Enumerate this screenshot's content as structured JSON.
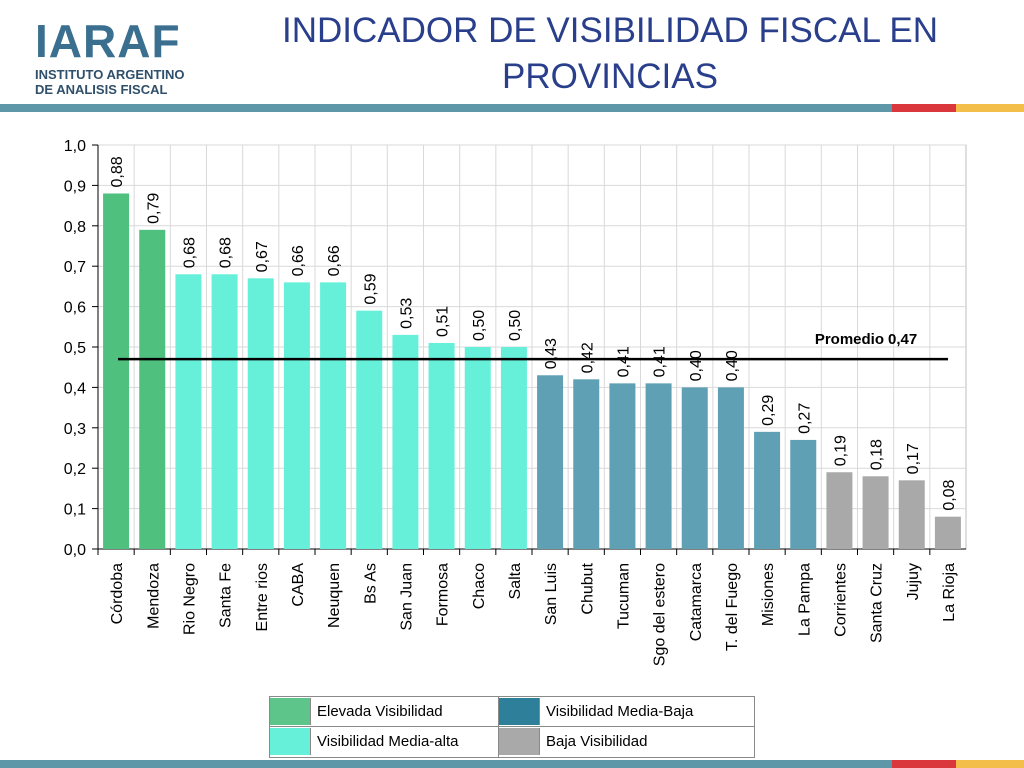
{
  "logo": {
    "mark": "IARAF",
    "line1": "INSTITUTO ARGENTINO",
    "line2": "DE ANALISIS FISCAL"
  },
  "title_line1": "INDICADOR DE VISIBILIDAD FISCAL EN",
  "title_line2": "PROVINCIAS",
  "colors": {
    "Elevada Visibilidad": "#4fc07e",
    "Visibilidad Media-alta": "#66f0d9",
    "Visibilidad Media-Baja": "#5fa0b5",
    "Baja Visibilidad": "#a9a9a9",
    "legend_media_baja": "#2e7f99",
    "legend_elevada": "#5dc58a",
    "title": "#2a3f8c"
  },
  "chart_data": {
    "type": "bar",
    "categories": [
      "Córdoba",
      "Mendoza",
      "Rio Negro",
      "Santa Fe",
      "Entre rios",
      "CABA",
      "Neuquen",
      "Bs As",
      "San Juan",
      "Formosa",
      "Chaco",
      "Salta",
      "San Luis",
      "Chubut",
      "Tucuman",
      "Sgo del estero",
      "Catamarca",
      "T. del Fuego",
      "Misiones",
      "La Pampa",
      "Corrientes",
      "Santa Cruz",
      "Jujuy",
      "La Rioja"
    ],
    "values": [
      0.88,
      0.79,
      0.68,
      0.68,
      0.67,
      0.66,
      0.66,
      0.59,
      0.53,
      0.51,
      0.5,
      0.5,
      0.43,
      0.42,
      0.41,
      0.41,
      0.4,
      0.4,
      0.29,
      0.27,
      0.19,
      0.18,
      0.17,
      0.08
    ],
    "value_labels": [
      "0,88",
      "0,79",
      "0,68",
      "0,68",
      "0,67",
      "0,66",
      "0,66",
      "0,59",
      "0,53",
      "0,51",
      "0,50",
      "0,50",
      "0,43",
      "0,42",
      "0,41",
      "0,41",
      "0,40",
      "0,40",
      "0,29",
      "0,27",
      "0,19",
      "0,18",
      "0,17",
      "0,08"
    ],
    "groups": [
      "Elevada Visibilidad",
      "Elevada Visibilidad",
      "Visibilidad Media-alta",
      "Visibilidad Media-alta",
      "Visibilidad Media-alta",
      "Visibilidad Media-alta",
      "Visibilidad Media-alta",
      "Visibilidad Media-alta",
      "Visibilidad Media-alta",
      "Visibilidad Media-alta",
      "Visibilidad Media-alta",
      "Visibilidad Media-alta",
      "Visibilidad Media-Baja",
      "Visibilidad Media-Baja",
      "Visibilidad Media-Baja",
      "Visibilidad Media-Baja",
      "Visibilidad Media-Baja",
      "Visibilidad Media-Baja",
      "Visibilidad Media-Baja",
      "Visibilidad Media-Baja",
      "Baja Visibilidad",
      "Baja Visibilidad",
      "Baja Visibilidad",
      "Baja Visibilidad"
    ],
    "ylim": [
      0,
      1.0
    ],
    "yticks": [
      0.0,
      0.1,
      0.2,
      0.3,
      0.4,
      0.5,
      0.6,
      0.7,
      0.8,
      0.9,
      1.0
    ],
    "ytick_labels": [
      "0,0",
      "0,1",
      "0,2",
      "0,3",
      "0,4",
      "0,5",
      "0,6",
      "0,7",
      "0,8",
      "0,9",
      "1,0"
    ],
    "grid": true,
    "average": {
      "value": 0.47,
      "label": "Promedio",
      "value_label": "0,47"
    },
    "legend": {
      "placement": "bottom",
      "entries": [
        "Elevada Visibilidad",
        "Visibilidad Media-Baja",
        "Visibilidad Media-alta",
        "Baja Visibilidad"
      ]
    }
  }
}
